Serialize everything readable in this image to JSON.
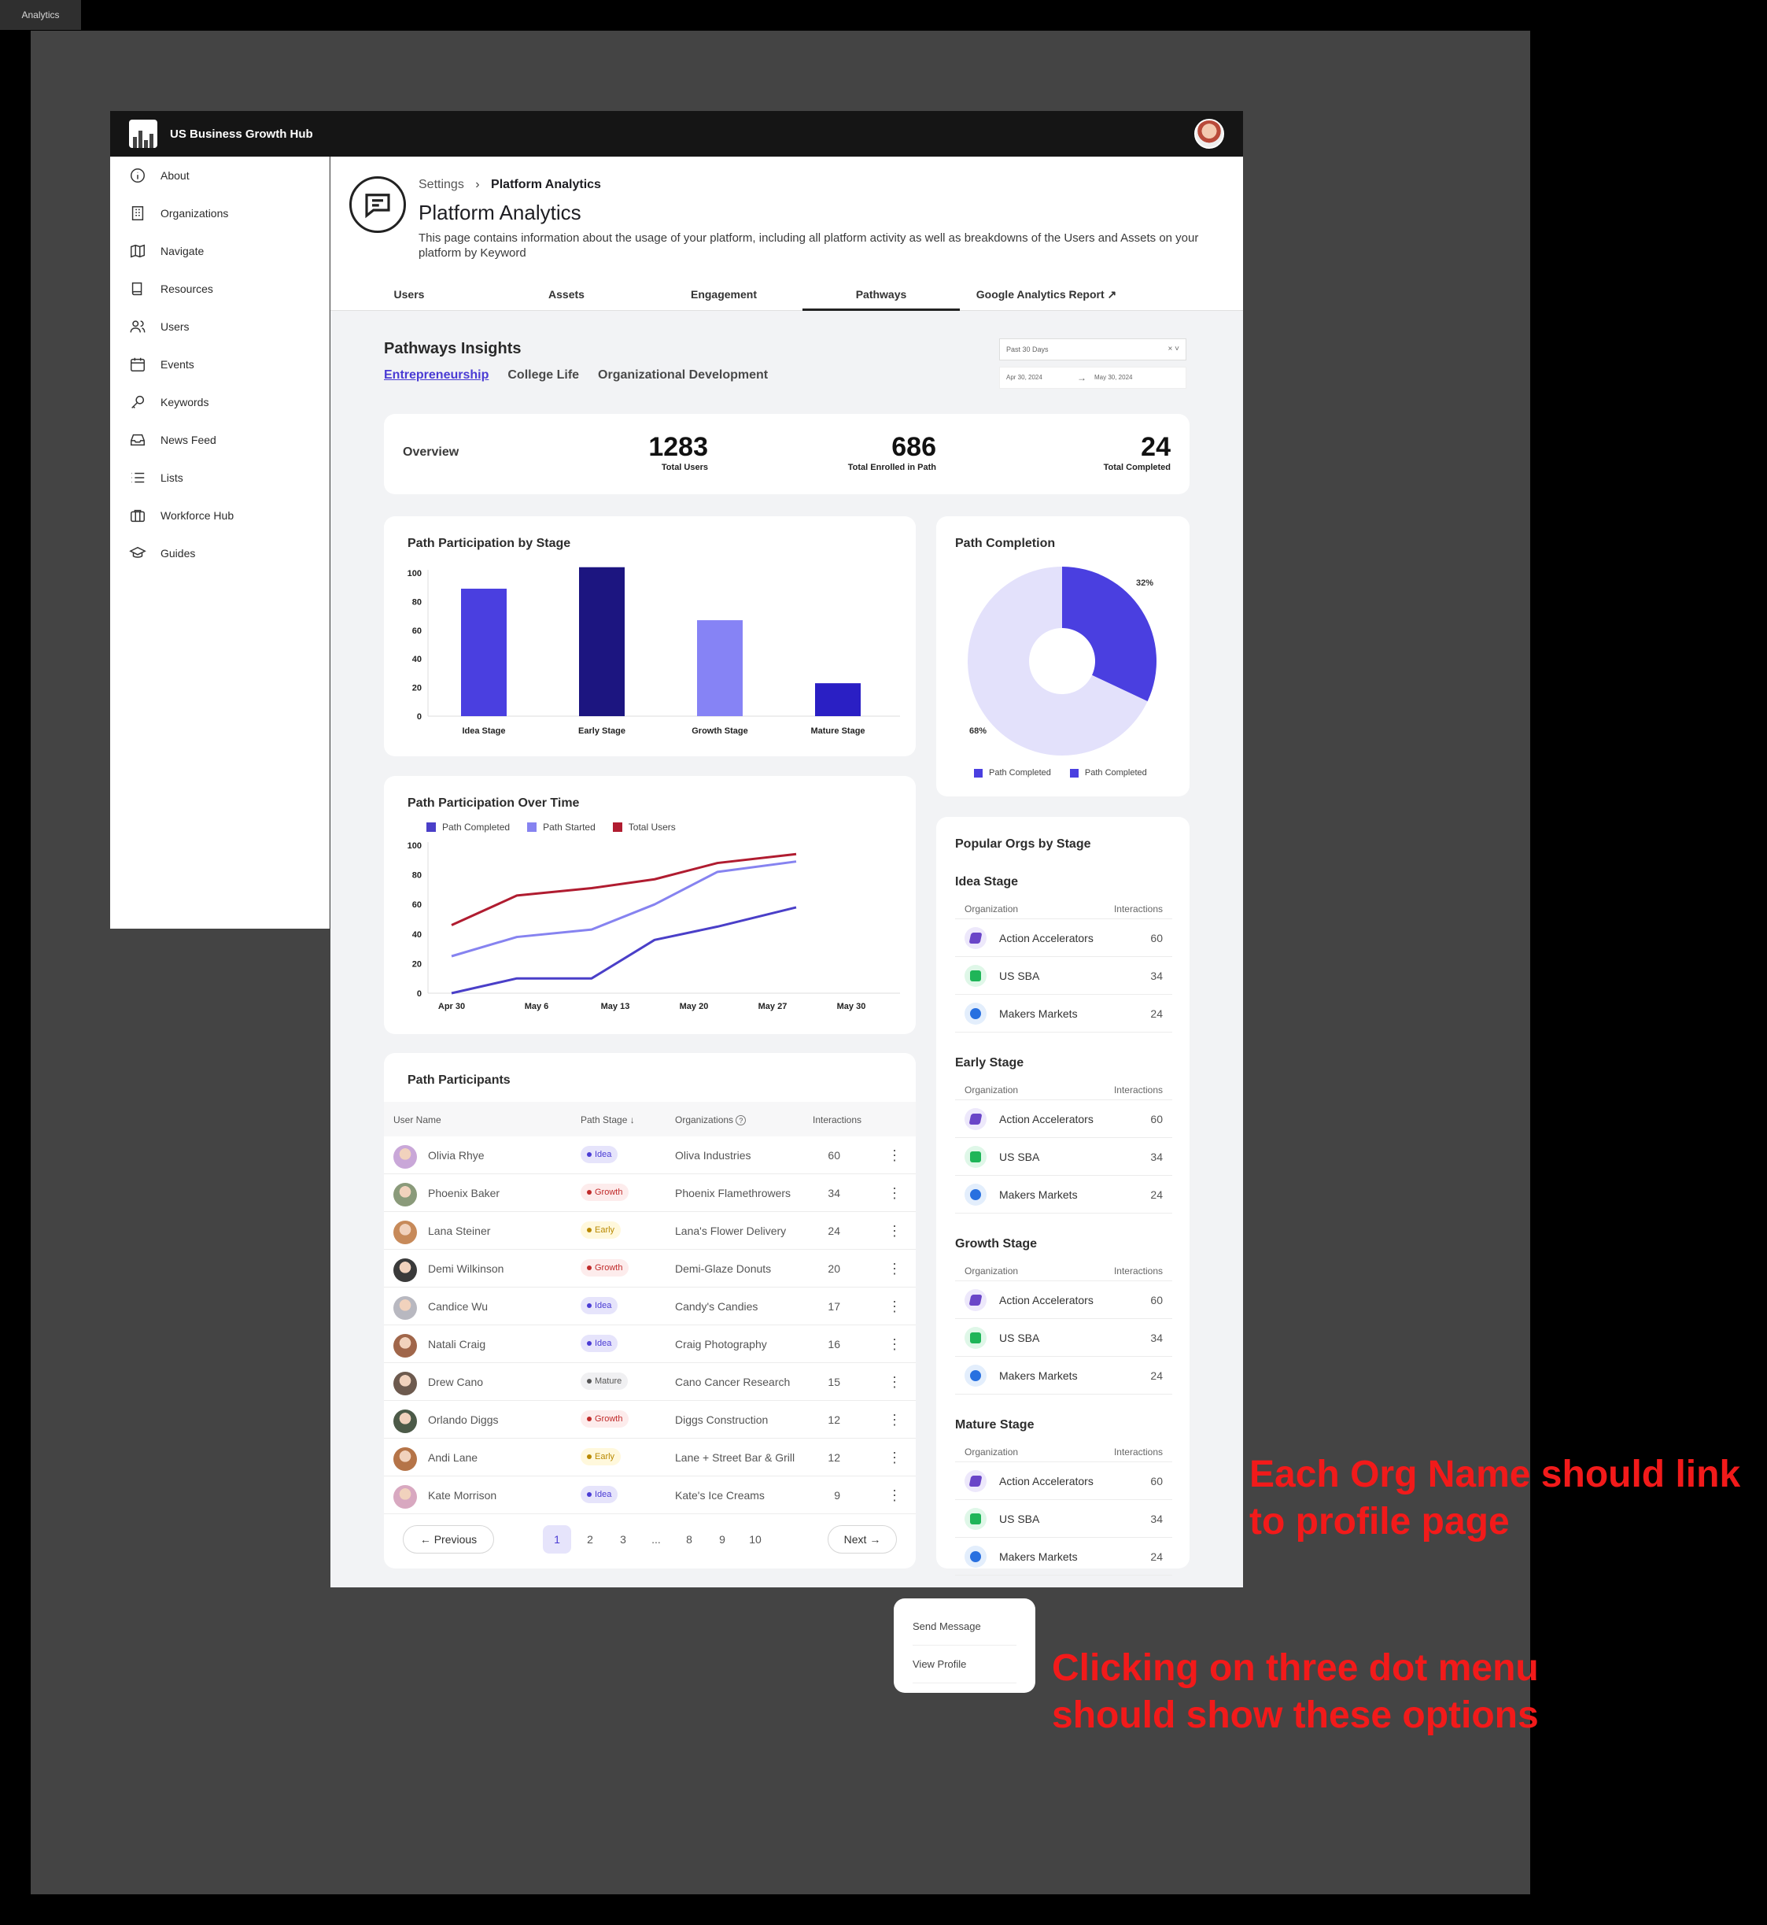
{
  "canvas_tab": "Analytics",
  "app": {
    "brand": "US Business Growth Hub"
  },
  "sidebar": {
    "items": [
      {
        "label": "About",
        "icon": "info-icon"
      },
      {
        "label": "Organizations",
        "icon": "building-icon"
      },
      {
        "label": "Navigate",
        "icon": "map-icon"
      },
      {
        "label": "Resources",
        "icon": "book-icon"
      },
      {
        "label": "Users",
        "icon": "users-icon"
      },
      {
        "label": "Events",
        "icon": "calendar-icon"
      },
      {
        "label": "Keywords",
        "icon": "key-icon"
      },
      {
        "label": "News Feed",
        "icon": "inbox-icon"
      },
      {
        "label": "Lists",
        "icon": "list-icon"
      },
      {
        "label": "Workforce Hub",
        "icon": "briefcase-icon"
      },
      {
        "label": "Guides",
        "icon": "graduation-cap-icon"
      }
    ]
  },
  "header": {
    "breadcrumb_parent": "Settings",
    "breadcrumb_current": "Platform Analytics",
    "title": "Platform Analytics",
    "description": "This page contains information about the usage of your platform, including all platform activity as well as breakdowns of the Users and Assets on your platform by Keyword",
    "tabs": [
      "Users",
      "Assets",
      "Engagement",
      "Pathways",
      "Google Analytics Report"
    ],
    "active_tab": "Pathways"
  },
  "insights": {
    "title": "Pathways Insights",
    "subtabs": [
      "Entrepreneurship",
      "College Life",
      "Organizational Development"
    ],
    "active_subtab": "Entrepreneurship",
    "date_preset": "Past 30 Days",
    "date_from": "Apr 30, 2024",
    "date_to": "May 30, 2024"
  },
  "overview": {
    "label": "Overview",
    "stats": [
      {
        "value": "1283",
        "label": "Total Users"
      },
      {
        "value": "686",
        "label": "Total Enrolled in Path"
      },
      {
        "value": "24",
        "label": "Total Completed"
      }
    ]
  },
  "chart_data": [
    {
      "type": "bar",
      "title": "Path Participation by Stage",
      "categories": [
        "Idea Stage",
        "Early Stage",
        "Growth Stage",
        "Mature Stage"
      ],
      "values": [
        89,
        104,
        67,
        23
      ],
      "ylim": [
        0,
        100
      ],
      "yticks": [
        0,
        20,
        40,
        60,
        80,
        100
      ],
      "colors": [
        "#4a3fe0",
        "#1c1580",
        "#8683f5",
        "#2a1fc4"
      ]
    },
    {
      "type": "pie",
      "title": "Path Completion",
      "labels": [
        "Path Completed",
        "Path Completed"
      ],
      "values": [
        32,
        68
      ],
      "value_labels": [
        "32%",
        "68%"
      ],
      "colors": [
        "#4a3fe0",
        "#e3e1fb"
      ],
      "legend_colors": [
        "#4a3fe0",
        "#4a3fe0"
      ]
    },
    {
      "type": "line",
      "title": "Path Participation Over Time",
      "x": [
        "Apr 30",
        "May 6",
        "May 13",
        "May 20",
        "May 27",
        "May 30"
      ],
      "ylim": [
        0,
        100
      ],
      "yticks": [
        0,
        20,
        40,
        60,
        80,
        100
      ],
      "series": [
        {
          "name": "Path Completed",
          "color": "#4a3fc8",
          "points": [
            [
              0,
              0
            ],
            [
              0.75,
              10
            ],
            [
              1.7,
              10
            ],
            [
              2.5,
              36
            ],
            [
              3.3,
              45
            ],
            [
              4.3,
              58
            ]
          ]
        },
        {
          "name": "Path Started",
          "color": "#8683f0",
          "points": [
            [
              0,
              25
            ],
            [
              0.75,
              38
            ],
            [
              1.7,
              43
            ],
            [
              2.5,
              60
            ],
            [
              3.3,
              82
            ],
            [
              4.3,
              89
            ]
          ]
        },
        {
          "name": "Total Users",
          "color": "#b01c30",
          "points": [
            [
              0,
              46
            ],
            [
              0.75,
              66
            ],
            [
              1.7,
              71
            ],
            [
              2.5,
              77
            ],
            [
              3.3,
              88
            ],
            [
              4.3,
              94
            ]
          ]
        }
      ]
    }
  ],
  "participants": {
    "title": "Path Participants",
    "columns": [
      "User Name",
      "Path Stage",
      "Organizations",
      "Interactions"
    ],
    "rows": [
      {
        "name": "Olivia Rhye",
        "stage": "Idea",
        "org": "Oliva Industries",
        "interactions": "60",
        "avatar": "#c9a7d8"
      },
      {
        "name": "Phoenix Baker",
        "stage": "Growth",
        "org": "Phoenix Flamethrowers",
        "interactions": "34",
        "avatar": "#8a9a7a"
      },
      {
        "name": "Lana Steiner",
        "stage": "Early",
        "org": "Lana's Flower Delivery",
        "interactions": "24",
        "avatar": "#c78a5a"
      },
      {
        "name": "Demi Wilkinson",
        "stage": "Growth",
        "org": "Demi-Glaze Donuts",
        "interactions": "20",
        "avatar": "#3a3a3a"
      },
      {
        "name": "Candice Wu",
        "stage": "Idea",
        "org": "Candy's Candies",
        "interactions": "17",
        "avatar": "#b8b8c0"
      },
      {
        "name": "Natali Craig",
        "stage": "Idea",
        "org": "Craig Photography",
        "interactions": "16",
        "avatar": "#a0664a"
      },
      {
        "name": "Drew Cano",
        "stage": "Mature",
        "org": "Cano Cancer Research",
        "interactions": "15",
        "avatar": "#6d5a4e"
      },
      {
        "name": "Orlando Diggs",
        "stage": "Growth",
        "org": "Diggs Construction",
        "interactions": "12",
        "avatar": "#4c5a48"
      },
      {
        "name": "Andi Lane",
        "stage": "Early",
        "org": "Lane + Street Bar & Grill",
        "interactions": "12",
        "avatar": "#b57448"
      },
      {
        "name": "Kate Morrison",
        "stage": "Idea",
        "org": "Kate's Ice Creams",
        "interactions": "9",
        "avatar": "#d8a8c0"
      }
    ],
    "pagination": {
      "previous": "Previous",
      "next": "Next",
      "pages": [
        "1",
        "2",
        "3",
        "...",
        "8",
        "9",
        "10"
      ],
      "current": "1"
    }
  },
  "popular_orgs": {
    "title": "Popular Orgs by Stage",
    "col_org": "Organization",
    "col_int": "Interactions",
    "stages": [
      {
        "name": "Idea Stage",
        "orgs": [
          {
            "name": "Action Accelerators",
            "value": "60"
          },
          {
            "name": "US SBA",
            "value": "34"
          },
          {
            "name": "Makers Markets",
            "value": "24"
          }
        ]
      },
      {
        "name": "Early Stage",
        "orgs": [
          {
            "name": "Action Accelerators",
            "value": "60"
          },
          {
            "name": "US SBA",
            "value": "34"
          },
          {
            "name": "Makers Markets",
            "value": "24"
          }
        ]
      },
      {
        "name": "Growth Stage",
        "orgs": [
          {
            "name": "Action Accelerators",
            "value": "60"
          },
          {
            "name": "US SBA",
            "value": "34"
          },
          {
            "name": "Makers Markets",
            "value": "24"
          }
        ]
      },
      {
        "name": "Mature Stage",
        "orgs": [
          {
            "name": "Action Accelerators",
            "value": "60"
          },
          {
            "name": "US SBA",
            "value": "34"
          },
          {
            "name": "Makers Markets",
            "value": "24"
          }
        ]
      }
    ]
  },
  "context_menu": {
    "items": [
      "Send Message",
      "View Profile"
    ]
  },
  "annotations": {
    "org_link_line1": "Each Org Name should link",
    "org_link_line2": "to profile page",
    "menu_line1": "Clicking on three dot menu",
    "menu_line2": "should show these options"
  }
}
